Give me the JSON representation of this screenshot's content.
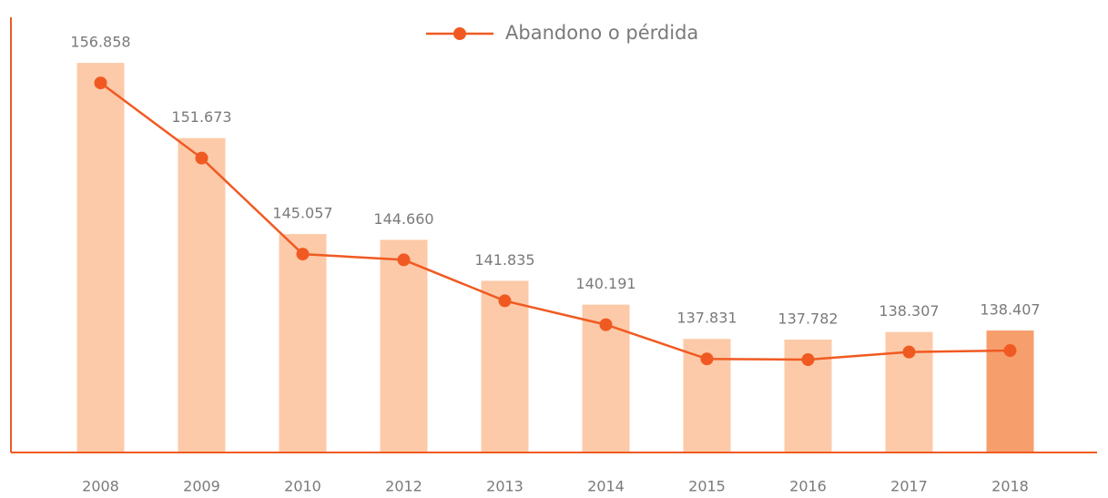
{
  "chart_data": {
    "type": "bar",
    "categories": [
      "2008",
      "2009",
      "2010",
      "2012",
      "2013",
      "2014",
      "2015",
      "2016",
      "2017",
      "2018"
    ],
    "series": [
      {
        "name": "Abandono o pérdida",
        "color": "#f05a22",
        "values": [
          156858,
          151673,
          145057,
          144660,
          141835,
          140191,
          137831,
          137782,
          138307,
          138407
        ],
        "value_labels": [
          "156.858",
          "151.673",
          "145.057",
          "144.660",
          "141.835",
          "140.191",
          "137.831",
          "137.782",
          "138.307",
          "138.407"
        ],
        "bar_colors": [
          "#fccaa9",
          "#fccaa9",
          "#fccaa9",
          "#fccaa9",
          "#fccaa9",
          "#fccaa9",
          "#fccaa9",
          "#fccaa9",
          "#fccaa9",
          "#f79e6d"
        ]
      }
    ],
    "ylim": [
      130000,
      160000
    ],
    "axis_color": "#f05a22",
    "legend": "top"
  }
}
